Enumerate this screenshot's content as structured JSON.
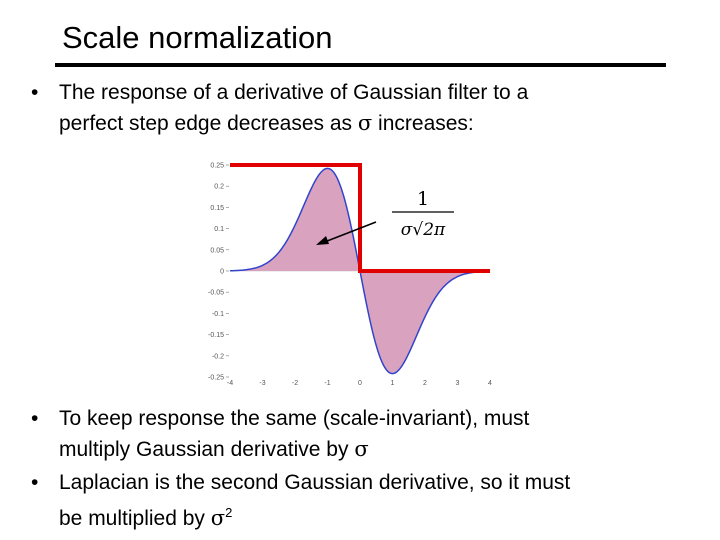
{
  "slide": {
    "title": "Scale normalization",
    "bullet_glyph": "•",
    "bullet1": {
      "line1": "The response of a derivative of Gaussian filter to a",
      "line2_before": "perfect step edge decreases as",
      "sigma": "σ",
      "line2_after": "increases:"
    },
    "bullet2": {
      "line1": "To keep response the same (scale-invariant), must",
      "line2_before": "multiply Gaussian derivative by",
      "sigma": "σ"
    },
    "bullet3": {
      "line1": "Laplacian is the second Gaussian derivative, so it must",
      "line2_before": "be multiplied by",
      "sigma": "σ",
      "exponent": "2"
    }
  },
  "chart_data": {
    "type": "area",
    "xlim": [
      -4,
      4
    ],
    "ylim": [
      -0.25,
      0.25
    ],
    "x_ticks": [
      "-4",
      "-3",
      "-2",
      "-1",
      "0",
      "1",
      "2",
      "3",
      "4"
    ],
    "y_ticks": [
      "0.25",
      "0.2",
      "0.15",
      "0.1",
      "0.05",
      "0",
      "-0.05",
      "-0.1",
      "-0.15",
      "-0.2",
      "-0.25"
    ],
    "series": [
      {
        "kind": "step_edge",
        "x": [
          -4,
          0,
          0,
          4
        ],
        "y": [
          0.25,
          0.25,
          0,
          0
        ],
        "color": "#e00000"
      },
      {
        "kind": "derivative_of_gaussian",
        "sigma": 1,
        "peak_x": -1,
        "peak_y": 0.242,
        "trough_x": 1,
        "trough_y": -0.242,
        "fill": "#d9a3c0",
        "line": "#3344cc"
      }
    ],
    "annotation": {
      "numerator": "1",
      "denominator": "σ√2π",
      "arrow_target": [
        -1.2,
        0.1
      ]
    }
  }
}
